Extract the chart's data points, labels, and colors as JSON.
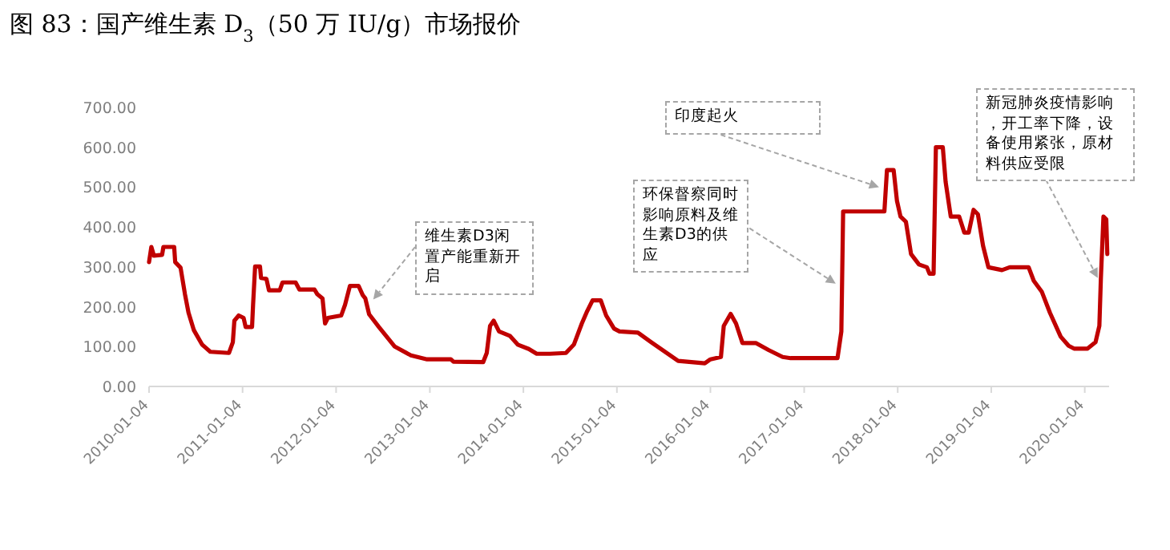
{
  "chart_data": {
    "type": "line",
    "title": "图 83：国产维生素 D$_{3}$（50 万 IU/g）市场报价",
    "x": [
      "2010-01-04",
      "2010-01-13",
      "2010-01-23",
      "2010-02-24",
      "2010-03-01",
      "2010-04-12",
      "2010-04-16",
      "2010-05-07",
      "2010-05-24",
      "2010-06-07",
      "2010-06-28",
      "2010-07-30",
      "2010-08-31",
      "2010-11-12",
      "2010-11-27",
      "2010-12-03",
      "2010-12-20",
      "2011-01-08",
      "2011-01-16",
      "2011-02-10",
      "2011-02-14",
      "2011-02-22",
      "2011-03-13",
      "2011-03-17",
      "2011-04-07",
      "2011-04-17",
      "2011-05-29",
      "2011-06-09",
      "2011-07-30",
      "2011-08-14",
      "2011-10-12",
      "2011-10-22",
      "2011-11-12",
      "2011-11-22",
      "2011-12-03",
      "2012-01-24",
      "2012-02-08",
      "2012-02-27",
      "2012-04-01",
      "2012-04-17",
      "2012-04-27",
      "2012-05-12",
      "2012-06-19",
      "2012-08-20",
      "2012-10-22",
      "2012-12-24",
      "2013-03-27",
      "2013-04-06",
      "2013-07-31",
      "2013-08-14",
      "2013-08-27",
      "2013-09-10",
      "2013-10-01",
      "2013-11-12",
      "2013-12-13",
      "2014-01-25",
      "2014-02-25",
      "2014-04-17",
      "2014-06-19",
      "2014-07-20",
      "2014-08-20",
      "2014-09-10",
      "2014-10-01",
      "2014-11-02",
      "2014-11-23",
      "2014-12-24",
      "2015-01-14",
      "2015-03-27",
      "2015-05-18",
      "2015-08-31",
      "2015-12-13",
      "2016-01-04",
      "2016-02-14",
      "2016-02-25",
      "2016-03-23",
      "2016-04-13",
      "2016-05-08",
      "2016-06-29",
      "2016-08-19",
      "2016-10-12",
      "2016-11-12",
      "2017-05-14",
      "2017-05-29",
      "2017-06-05",
      "2017-11-13",
      "2017-11-23",
      "2017-12-19",
      "2018-01-01",
      "2018-01-15",
      "2018-02-05",
      "2018-02-25",
      "2018-03-28",
      "2018-04-28",
      "2018-05-08",
      "2018-05-24",
      "2018-06-02",
      "2018-06-29",
      "2018-07-10",
      "2018-07-30",
      "2018-09-01",
      "2018-09-21",
      "2018-10-08",
      "2018-10-27",
      "2018-11-13",
      "2018-12-03",
      "2018-12-24",
      "2019-02-15",
      "2019-03-17",
      "2019-05-30",
      "2019-06-19",
      "2019-07-20",
      "2019-08-21",
      "2019-10-02",
      "2019-11-02",
      "2019-11-23",
      "2020-01-15",
      "2020-02-15",
      "2020-03-01",
      "2020-03-07",
      "2020-03-17",
      "2020-03-28",
      "2020-04-01"
    ],
    "series": [
      {
        "color": "#c00000",
        "values": [
          312,
          350,
          328,
          330,
          350,
          350,
          312,
          298,
          232,
          185,
          141,
          105,
          87,
          84,
          111,
          165,
          178,
          172,
          149,
          149,
          205,
          301,
          301,
          272,
          270,
          241,
          241,
          261,
          261,
          243,
          243,
          232,
          221,
          158,
          172,
          178,
          205,
          252,
          252,
          229,
          221,
          181,
          149,
          100,
          78,
          68,
          68,
          62,
          61,
          84,
          152,
          165,
          138,
          127,
          105,
          94,
          82,
          82,
          84,
          105,
          158,
          189,
          216,
          216,
          178,
          145,
          138,
          135,
          111,
          64,
          58,
          68,
          74,
          152,
          182,
          158,
          109,
          109,
          91,
          74,
          71,
          71,
          138,
          439,
          439,
          543,
          543,
          466,
          426,
          413,
          332,
          306,
          299,
          283,
          283,
          600,
          600,
          513,
          426,
          426,
          386,
          386,
          443,
          432,
          353,
          299,
          292,
          299,
          299,
          265,
          238,
          185,
          125,
          102,
          95,
          95,
          111,
          152,
          272,
          426,
          419,
          332
        ]
      }
    ],
    "xlim": [
      "2010-01-04",
      "2020-04-08"
    ],
    "xticks": [
      "2010-01-04",
      "2011-01-04",
      "2012-01-04",
      "2013-01-04",
      "2014-01-04",
      "2015-01-04",
      "2016-01-04",
      "2017-01-04",
      "2018-01-04",
      "2019-01-04",
      "2020-01-04"
    ],
    "ylim": [
      0,
      700
    ],
    "yticks": [
      {
        "value": 0,
        "label": "0.00"
      },
      {
        "value": 100,
        "label": "100.00"
      },
      {
        "value": 200,
        "label": "200.00"
      },
      {
        "value": 300,
        "label": "300.00"
      },
      {
        "value": 400,
        "label": "400.00"
      },
      {
        "value": 500,
        "label": "500.00"
      },
      {
        "value": 600,
        "label": "600.00"
      },
      {
        "value": 700,
        "label": "700.00"
      }
    ],
    "annotations": [
      {
        "text": "维生素D3闲置产能重新开启",
        "x": "2012-05-28",
        "y": 218
      },
      {
        "text": "环保督察同时影响原料及维生素D3的供应",
        "x": "2017-05-07",
        "y": 258
      },
      {
        "text": "印度起火",
        "x": "2017-10-23",
        "y": 500
      },
      {
        "text": "新冠肺炎疫情影响，开工率下降，设备使用紧张，原材料供应受限",
        "x": "2020-02-24",
        "y": 272
      }
    ]
  }
}
